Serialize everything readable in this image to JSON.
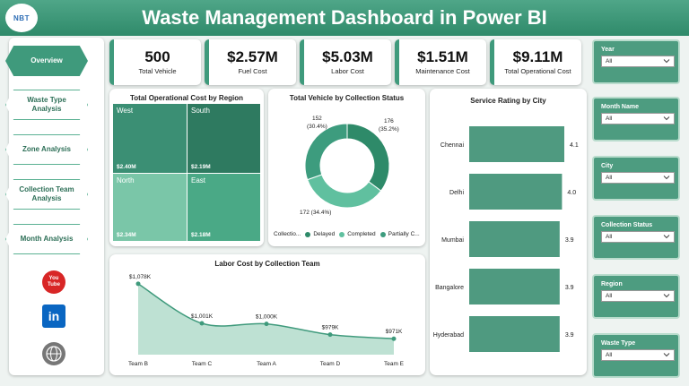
{
  "header": {
    "logo_text": "NBT",
    "title": "Waste Management Dashboard in Power BI",
    "accent": "#3f9a7c"
  },
  "sidebar": {
    "more_label": "...",
    "items": [
      {
        "label": "Overview"
      },
      {
        "label": "Waste Type Analysis"
      },
      {
        "label": "Zone Analysis"
      },
      {
        "label": "Collection Team Analysis"
      },
      {
        "label": "Month Analysis"
      }
    ],
    "social": [
      {
        "name": "youtube-icon",
        "label": "You Tube",
        "color": "#d82626"
      },
      {
        "name": "linkedin-icon",
        "label": "in",
        "color": "#0a66c2"
      },
      {
        "name": "web-icon",
        "label": "WWW",
        "color": "#666666"
      }
    ]
  },
  "kpis": [
    {
      "value": "500",
      "label": "Total Vehicle"
    },
    {
      "value": "$2.57M",
      "label": "Fuel Cost"
    },
    {
      "value": "$5.03M",
      "label": "Labor Cost"
    },
    {
      "value": "$1.51M",
      "label": "Maintenance Cost"
    },
    {
      "value": "$9.11M",
      "label": "Total Operational Cost"
    }
  ],
  "treemap": {
    "title": "Total Operational Cost by Region",
    "cells": [
      {
        "label": "West",
        "value": "$2.40M",
        "color": "#3b8f74"
      },
      {
        "label": "South",
        "value": "$2.19M",
        "color": "#2e7a60"
      },
      {
        "label": "North",
        "value": "$2.34M",
        "color": "#7ac6a8"
      },
      {
        "label": "East",
        "value": "$2.18M",
        "color": "#4aa986"
      }
    ]
  },
  "donut": {
    "title": "Total Vehicle by Collection Status",
    "legend_title": "Collectio...",
    "legend": [
      {
        "label": "Delayed",
        "color": "#2e8a69"
      },
      {
        "label": "Completed",
        "color": "#60c09f"
      },
      {
        "label": "Partially C...",
        "color": "#3d9c7e"
      }
    ],
    "labels": [
      {
        "value": "152",
        "pct": "(30.4%)"
      },
      {
        "value": "176",
        "pct": "(35.2%)"
      },
      {
        "value": "172 (34.4%)"
      }
    ]
  },
  "chart_data": [
    {
      "type": "pie",
      "title": "Total Vehicle by Collection Status",
      "legend_title": "Collectio...",
      "categories": [
        "Delayed",
        "Completed",
        "Partially C..."
      ],
      "values": [
        176,
        172,
        152
      ],
      "colors": [
        "#2e8a69",
        "#60c09f",
        "#3d9c7e"
      ]
    },
    {
      "type": "bar",
      "title": "Service Rating by City",
      "categories": [
        "Chennai",
        "Delhi",
        "Mumbai",
        "Bangalore",
        "Hyderabad"
      ],
      "values": [
        4.1,
        4.0,
        3.9,
        3.9,
        3.9
      ],
      "value_labels": [
        "4.1",
        "4.0",
        "3.9",
        "3.9",
        "3.9"
      ],
      "xlim": [
        0,
        4.1
      ],
      "color": "#4f9a80"
    },
    {
      "type": "area",
      "title": "Labor Cost by Collection Team",
      "categories": [
        "Team B",
        "Team C",
        "Team A",
        "Team D",
        "Team E"
      ],
      "values": [
        1078,
        1001,
        1000,
        979,
        971
      ],
      "value_labels": [
        "$1,078K",
        "$1,001K",
        "$1,000K",
        "$979K",
        "$971K"
      ],
      "ylim": [
        940,
        1090
      ],
      "color": "#3f9a7c"
    }
  ],
  "filters": [
    {
      "label": "Year",
      "value": "All"
    },
    {
      "label": "Month Name",
      "value": "All"
    },
    {
      "label": "City",
      "value": "All"
    },
    {
      "label": "Collection Status",
      "value": "All"
    },
    {
      "label": "Region",
      "value": "All"
    },
    {
      "label": "Waste Type",
      "value": "All"
    }
  ]
}
